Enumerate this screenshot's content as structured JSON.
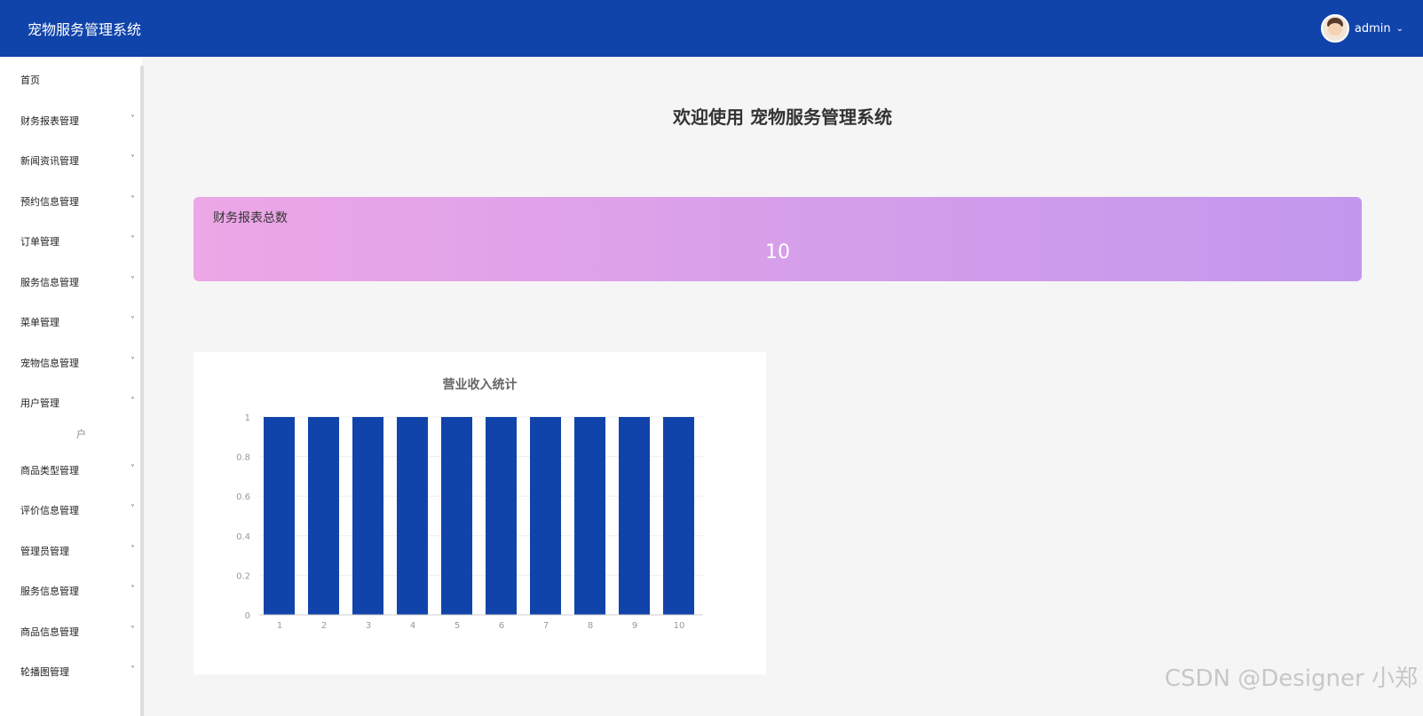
{
  "header": {
    "title": "宠物服务管理系统",
    "user": "admin",
    "avatar_icon": "user-avatar"
  },
  "sidebar": {
    "items": [
      {
        "label": "首页",
        "chevron": ""
      },
      {
        "label": "财务报表管理",
        "chevron": "down"
      },
      {
        "label": "新闻资讯管理",
        "chevron": "down"
      },
      {
        "label": "预约信息管理",
        "chevron": "down"
      },
      {
        "label": "订单管理",
        "chevron": "down"
      },
      {
        "label": "服务信息管理",
        "chevron": "down"
      },
      {
        "label": "菜单管理",
        "chevron": "down"
      },
      {
        "label": "宠物信息管理",
        "chevron": "down"
      },
      {
        "label": "用户管理",
        "chevron": "up"
      },
      {
        "label": "商品类型管理",
        "chevron": "down"
      },
      {
        "label": "评价信息管理",
        "chevron": "down"
      },
      {
        "label": "管理员管理",
        "chevron": "down"
      },
      {
        "label": "服务信息管理",
        "chevron": "down"
      },
      {
        "label": "商品信息管理",
        "chevron": "down"
      },
      {
        "label": "轮播图管理",
        "chevron": "down"
      }
    ],
    "submenu_item": "户"
  },
  "main": {
    "welcome": "欢迎使用 宠物服务管理系统",
    "stat_label": "财务报表总数",
    "stat_value": "10"
  },
  "chart_data": {
    "type": "bar",
    "title": "营业收入统计",
    "categories": [
      "1",
      "2",
      "3",
      "4",
      "5",
      "6",
      "7",
      "8",
      "9",
      "10"
    ],
    "values": [
      1,
      1,
      1,
      1,
      1,
      1,
      1,
      1,
      1,
      1
    ],
    "ylim": [
      0,
      1
    ],
    "yticks": [
      "0",
      "0.2",
      "0.4",
      "0.6",
      "0.8",
      "1"
    ],
    "color": "#1144aa",
    "grid": true
  },
  "watermark": "CSDN @Designer 小郑"
}
